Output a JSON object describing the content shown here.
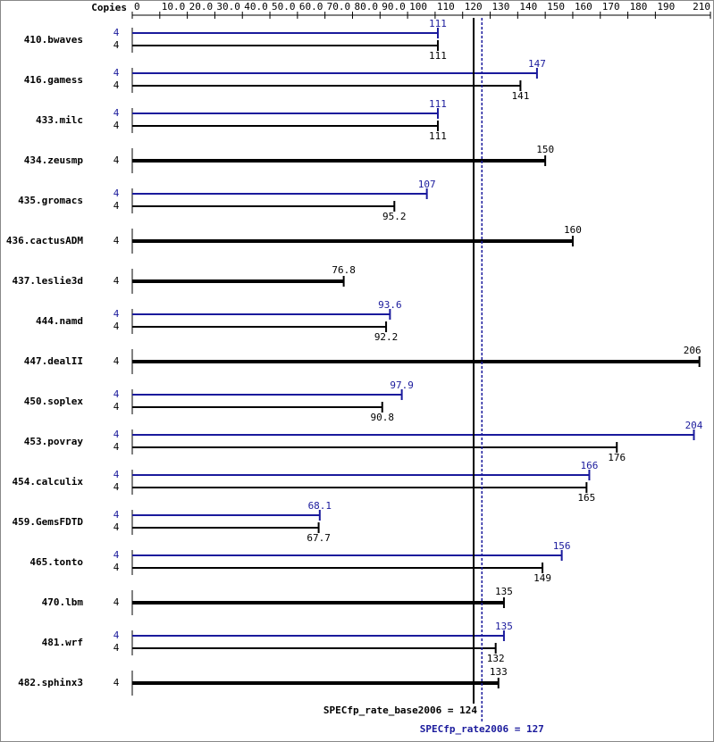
{
  "chart_data": {
    "type": "bar",
    "orientation": "horizontal",
    "x_axis_label": "Copies",
    "categories": [
      "410.bwaves",
      "416.gamess",
      "433.milc",
      "434.zeusmp",
      "435.gromacs",
      "436.cactusADM",
      "437.leslie3d",
      "444.namd",
      "447.dealII",
      "450.soplex",
      "453.povray",
      "454.calculix",
      "459.GemsFDTD",
      "465.tonto",
      "470.lbm",
      "481.wrf",
      "482.sphinx3"
    ],
    "series": [
      {
        "color": "#1a1a9c",
        "values": [
          111,
          147,
          111,
          null,
          107,
          null,
          null,
          93.6,
          null,
          97.9,
          204,
          166,
          68.1,
          156,
          null,
          135,
          null
        ],
        "copies": [
          4,
          4,
          4,
          null,
          4,
          null,
          null,
          4,
          null,
          4,
          4,
          4,
          4,
          4,
          null,
          4,
          null
        ]
      },
      {
        "color": "#000000",
        "values": [
          111,
          141,
          111,
          150,
          95.2,
          160,
          76.8,
          92.2,
          206,
          90.8,
          176,
          165,
          67.7,
          149,
          135,
          132,
          133
        ],
        "copies": [
          4,
          4,
          4,
          4,
          4,
          4,
          4,
          4,
          4,
          4,
          4,
          4,
          4,
          4,
          4,
          4,
          4
        ]
      }
    ],
    "xlim": [
      0,
      210
    ],
    "xticks": [
      0,
      {
        "value": 10,
        "label": "10.0"
      },
      {
        "value": 20,
        "label": "20.0"
      },
      {
        "value": 30,
        "label": "30.0"
      },
      {
        "value": 40,
        "label": "40.0"
      },
      {
        "value": 50,
        "label": "50.0"
      },
      {
        "value": 60,
        "label": "60.0"
      },
      {
        "value": 70,
        "label": "70.0"
      },
      {
        "value": 80,
        "label": "80.0"
      },
      {
        "value": 90,
        "label": "90.0"
      },
      100,
      110,
      120,
      130,
      140,
      150,
      160,
      170,
      180,
      190,
      210
    ],
    "reference_lines": [
      {
        "label": "SPECfp_rate_base2006 = 124",
        "value": 124,
        "color": "#000000",
        "dashed": false
      },
      {
        "label": "SPECfp_rate2006 = 127",
        "value": 127,
        "color": "#1a1a9c",
        "dashed": true
      }
    ]
  }
}
